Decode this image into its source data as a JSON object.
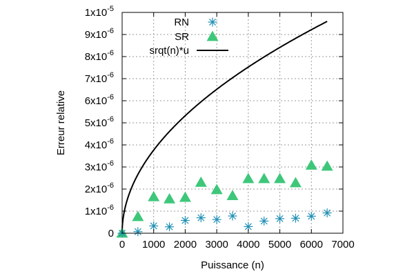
{
  "chart_data": {
    "type": "scatter",
    "xlabel": "Puissance (n)",
    "ylabel": "Erreur relative",
    "xlim": [
      0,
      7000
    ],
    "ylim": [
      0,
      1e-05
    ],
    "grid": true,
    "legend_position": "top-left",
    "x_ticks": [
      "0",
      "1000",
      "2000",
      "3000",
      "4000",
      "5000",
      "6000",
      "7000"
    ],
    "y_ticks": [
      {
        "mantissa": "0",
        "exponent": ""
      },
      {
        "mantissa": "1x10",
        "exponent": "-6"
      },
      {
        "mantissa": "2x10",
        "exponent": "-6"
      },
      {
        "mantissa": "3x10",
        "exponent": "-6"
      },
      {
        "mantissa": "4x10",
        "exponent": "-6"
      },
      {
        "mantissa": "5x10",
        "exponent": "-6"
      },
      {
        "mantissa": "6x10",
        "exponent": "-6"
      },
      {
        "mantissa": "7x10",
        "exponent": "-6"
      },
      {
        "mantissa": "8x10",
        "exponent": "-6"
      },
      {
        "mantissa": "9x10",
        "exponent": "-6"
      },
      {
        "mantissa": "1x10",
        "exponent": "-5"
      }
    ],
    "x_tick_values": [
      0,
      1000,
      2000,
      3000,
      4000,
      5000,
      6000,
      7000
    ],
    "y_tick_values": [
      0,
      1e-06,
      2e-06,
      3e-06,
      4e-06,
      5e-06,
      6e-06,
      7e-06,
      8e-06,
      9e-06,
      1e-05
    ],
    "series": [
      {
        "name": "RN",
        "marker": "asterisk",
        "color": "#1f8fb4",
        "x": [
          0,
          500,
          1000,
          1500,
          2000,
          2500,
          3000,
          3500,
          4000,
          4500,
          5000,
          5500,
          6000,
          6500
        ],
        "y": [
          0,
          7e-08,
          3.3e-07,
          2.9e-07,
          5.8e-07,
          7e-07,
          6.2e-07,
          7.8e-07,
          3e-07,
          5.5e-07,
          6.6e-07,
          6.8e-07,
          7.7e-07,
          9.2e-07
        ]
      },
      {
        "name": "SR",
        "marker": "triangle",
        "color": "#3ec77a",
        "x": [
          0,
          500,
          1000,
          1500,
          2000,
          2500,
          3000,
          3500,
          4000,
          4500,
          5000,
          5500,
          6000,
          6500
        ],
        "y": [
          0,
          7.5e-07,
          1.65e-06,
          1.55e-06,
          1.62e-06,
          2.3e-06,
          1.97e-06,
          1.7e-06,
          2.47e-06,
          2.47e-06,
          2.47e-06,
          2.28e-06,
          3.08e-06,
          3.03e-06
        ]
      },
      {
        "name": "srqt(n)*u",
        "type": "line",
        "color": "#000000",
        "function": "sqrt(n)*u",
        "u": 1.19e-07,
        "x_range": [
          0,
          6500
        ]
      }
    ]
  }
}
